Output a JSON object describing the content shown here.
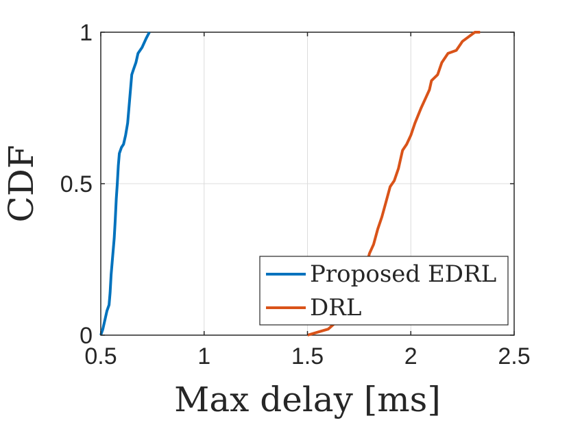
{
  "chart_data": {
    "type": "line",
    "xlabel": "Max delay [ms]",
    "ylabel": "CDF",
    "xlim": [
      0.5,
      2.5
    ],
    "ylim": [
      0,
      1
    ],
    "x_ticks": [
      "0.5",
      "1",
      "1.5",
      "2",
      "2.5"
    ],
    "y_ticks": [
      "0",
      "0.5",
      "1"
    ],
    "grid": true,
    "legend_position": "bottom-right",
    "series": [
      {
        "name": "Proposed EDRL",
        "color": "#0072BD",
        "x": [
          0.5,
          0.51,
          0.52,
          0.53,
          0.54,
          0.545,
          0.55,
          0.555,
          0.56,
          0.565,
          0.57,
          0.575,
          0.58,
          0.585,
          0.59,
          0.6,
          0.61,
          0.62,
          0.63,
          0.635,
          0.64,
          0.645,
          0.65,
          0.66,
          0.67,
          0.68,
          0.7,
          0.72,
          0.735
        ],
        "y": [
          0.0,
          0.02,
          0.05,
          0.08,
          0.1,
          0.14,
          0.2,
          0.24,
          0.28,
          0.32,
          0.38,
          0.45,
          0.5,
          0.56,
          0.6,
          0.62,
          0.63,
          0.66,
          0.7,
          0.74,
          0.78,
          0.82,
          0.86,
          0.88,
          0.9,
          0.93,
          0.95,
          0.98,
          1.0
        ]
      },
      {
        "name": "DRL",
        "color": "#D95319",
        "x": [
          1.5,
          1.55,
          1.6,
          1.65,
          1.7,
          1.74,
          1.77,
          1.78,
          1.8,
          1.82,
          1.84,
          1.86,
          1.88,
          1.9,
          1.92,
          1.94,
          1.95,
          1.96,
          1.98,
          2.0,
          2.02,
          2.05,
          2.07,
          2.09,
          2.1,
          2.13,
          2.15,
          2.18,
          2.22,
          2.24,
          2.25,
          2.27,
          2.29,
          2.31,
          2.335
        ],
        "y": [
          0.0,
          0.01,
          0.02,
          0.05,
          0.09,
          0.13,
          0.18,
          0.22,
          0.27,
          0.3,
          0.35,
          0.39,
          0.44,
          0.49,
          0.51,
          0.55,
          0.58,
          0.61,
          0.63,
          0.66,
          0.7,
          0.75,
          0.78,
          0.81,
          0.84,
          0.86,
          0.9,
          0.93,
          0.94,
          0.96,
          0.97,
          0.98,
          0.99,
          1.0,
          1.0
        ]
      }
    ]
  }
}
